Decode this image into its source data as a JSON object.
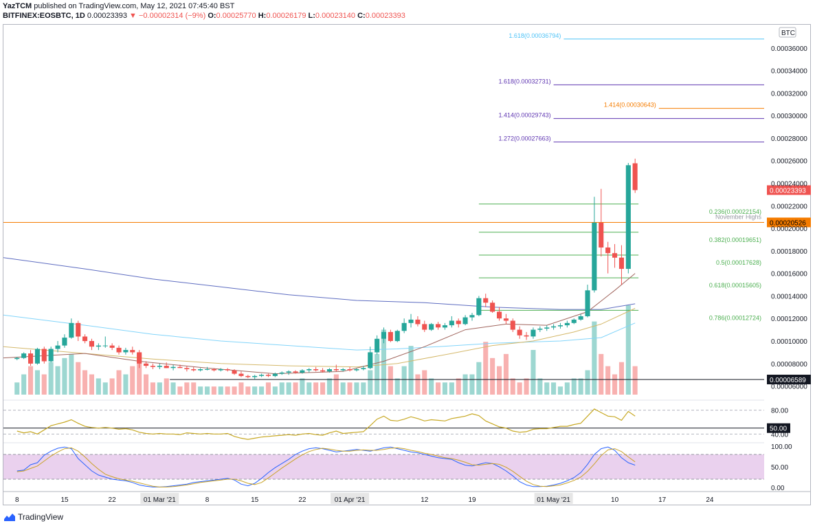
{
  "header": {
    "publisher": "YazTCM",
    "published_text": "published on TradingView.com, May 12, 2021 07:45:40 BST",
    "symbol": "BITFINEX:EOSBTC, 1D",
    "last": "0.00023393",
    "change": "−0.00002314 (−9%)",
    "o_label": "O:",
    "o_value": "0.00025770",
    "h_label": "H:",
    "h_value": "0.00026179",
    "l_label": "L:",
    "l_value": "0.00023140",
    "c_label": "C:",
    "c_value": "0.00023393"
  },
  "footer": {
    "brand": "TradingView"
  },
  "colors": {
    "up": "#26a69a",
    "down": "#ef5350",
    "fib": "#4caf50",
    "purple_fib": "#5e35b1",
    "orange": "#f57c00",
    "lightblue": "#4fc3f7",
    "rsi": "#c7a823",
    "stoch_k": "#2962ff",
    "stoch_d": "#c9a227"
  },
  "chart_data": {
    "type": "candlestick",
    "currency_label": "BTC",
    "y_ticks": [
      "0.00036000",
      "0.00034000",
      "0.00032000",
      "0.00030000",
      "0.00028000",
      "0.00026000",
      "0.00024000",
      "0.00022000",
      "0.00020000",
      "0.00018000",
      "0.00016000",
      "0.00014000",
      "0.00012000",
      "0.00010000",
      "0.00008000",
      "0.00006000"
    ],
    "y_range": [
      5e-05,
      0.00038
    ],
    "x_ticks": [
      "8",
      "15",
      "22",
      "01 Mar '21",
      "8",
      "15",
      "22",
      "01 Apr '21",
      "12",
      "19",
      "01 May '21",
      "10",
      "17",
      "24"
    ],
    "x_day_range": [
      -2,
      110
    ],
    "last_price_label": "0.00023393",
    "november_highs": {
      "label": "November Highs",
      "value_label": "0.00020526",
      "value": 0.00020526
    },
    "support_line": {
      "value_label": "0.00006589",
      "value": 6.589e-05
    },
    "fib_levels": [
      {
        "label": "0.236(0.00022154)",
        "value": 0.00022154,
        "color": "#4caf50"
      },
      {
        "label": "0.382(0.00019651)",
        "value": 0.00019651,
        "color": "#4caf50"
      },
      {
        "label": "0.5(0.00017628)",
        "value": 0.00017628,
        "color": "#4caf50"
      },
      {
        "label": "0.618(0.00015605)",
        "value": 0.00015605,
        "color": "#4caf50"
      },
      {
        "label": "0.786(0.00012724)",
        "value": 0.00012724,
        "color": "#4caf50"
      }
    ],
    "extension_levels": [
      {
        "label": "1.618(0.00036794)",
        "value": 0.00036794,
        "color": "#4fc3f7"
      },
      {
        "label": "1.618(0.00032731)",
        "value": 0.00032731,
        "color": "#5e35b1"
      },
      {
        "label": "1.414(0.00030643)",
        "value": 0.00030643,
        "color": "#f57c00"
      },
      {
        "label": "1.414(0.00029743)",
        "value": 0.00029743,
        "color": "#5e35b1"
      },
      {
        "label": "1.272(0.00027663)",
        "value": 0.00027663,
        "color": "#5e35b1"
      }
    ],
    "candles": [
      [
        0,
        8.4,
        8.6,
        8.3,
        8.5
      ],
      [
        1,
        8.5,
        9.0,
        8.4,
        8.9
      ],
      [
        2,
        8.9,
        9.2,
        7.8,
        8.0
      ],
      [
        3,
        8.0,
        9.4,
        7.9,
        9.3
      ],
      [
        4,
        9.3,
        9.5,
        8.0,
        8.2
      ],
      [
        5,
        8.2,
        9.5,
        8.1,
        9.3
      ],
      [
        6,
        9.3,
        10.0,
        9.0,
        9.6
      ],
      [
        7,
        9.6,
        10.6,
        9.4,
        10.3
      ],
      [
        8,
        10.3,
        12.0,
        10.2,
        11.6
      ],
      [
        9,
        11.6,
        11.8,
        10.0,
        10.4
      ],
      [
        10,
        10.4,
        10.6,
        9.8,
        10.0
      ],
      [
        11,
        10.0,
        10.2,
        9.2,
        9.5
      ],
      [
        12,
        9.5,
        9.8,
        9.2,
        9.6
      ],
      [
        13,
        9.6,
        10.4,
        9.4,
        9.6
      ],
      [
        14,
        9.6,
        9.8,
        9.2,
        9.4
      ],
      [
        15,
        9.4,
        9.6,
        8.8,
        9.0
      ],
      [
        16,
        9.0,
        9.4,
        8.8,
        9.2
      ],
      [
        17,
        9.2,
        9.5,
        8.8,
        9.0
      ],
      [
        18,
        9.0,
        9.2,
        7.6,
        8.0
      ],
      [
        19,
        8.0,
        8.2,
        7.6,
        7.8
      ],
      [
        20,
        7.8,
        8.0,
        7.5,
        7.7
      ],
      [
        21,
        7.7,
        8.0,
        7.5,
        7.8
      ],
      [
        22,
        7.8,
        8.1,
        7.6,
        7.6
      ],
      [
        23,
        7.6,
        7.9,
        7.4,
        7.7
      ],
      [
        24,
        7.7,
        7.9,
        7.6,
        7.6
      ],
      [
        25,
        7.6,
        7.8,
        7.3,
        7.5
      ],
      [
        26,
        7.5,
        7.7,
        7.3,
        7.4
      ],
      [
        27,
        7.4,
        7.6,
        7.3,
        7.5
      ],
      [
        28,
        7.5,
        7.7,
        7.4,
        7.5
      ],
      [
        29,
        7.5,
        7.6,
        7.3,
        7.4
      ],
      [
        30,
        7.4,
        7.6,
        7.3,
        7.5
      ],
      [
        31,
        7.5,
        7.6,
        7.3,
        7.4
      ],
      [
        32,
        7.4,
        7.5,
        7.0,
        7.1
      ],
      [
        33,
        7.1,
        7.3,
        6.8,
        6.9
      ],
      [
        34,
        6.9,
        7.0,
        6.7,
        6.8
      ],
      [
        35,
        6.8,
        7.0,
        6.6,
        6.9
      ],
      [
        36,
        6.9,
        7.1,
        6.8,
        7.0
      ],
      [
        37,
        7.0,
        7.1,
        6.8,
        6.9
      ],
      [
        38,
        6.9,
        7.2,
        6.8,
        7.1
      ],
      [
        39,
        7.1,
        7.3,
        7.0,
        7.2
      ],
      [
        40,
        7.2,
        7.4,
        7.0,
        7.3
      ],
      [
        41,
        7.3,
        7.4,
        7.1,
        7.2
      ],
      [
        42,
        7.2,
        7.5,
        7.1,
        7.4
      ],
      [
        43,
        7.4,
        7.6,
        7.2,
        7.5
      ],
      [
        44,
        7.5,
        7.7,
        7.3,
        7.4
      ],
      [
        45,
        7.4,
        7.6,
        7.2,
        7.3
      ],
      [
        46,
        7.3,
        7.6,
        7.2,
        7.5
      ],
      [
        47,
        7.5,
        7.9,
        7.3,
        7.4
      ],
      [
        48,
        7.4,
        7.6,
        7.3,
        7.5
      ],
      [
        49,
        7.5,
        7.7,
        7.3,
        7.4
      ],
      [
        50,
        7.4,
        7.6,
        7.3,
        7.5
      ],
      [
        51,
        7.5,
        7.8,
        7.4,
        7.6
      ],
      [
        52,
        7.6,
        9.5,
        7.5,
        9.0
      ],
      [
        53,
        9.0,
        10.5,
        8.8,
        10.2
      ],
      [
        54,
        10.2,
        11.2,
        9.8,
        10.8
      ],
      [
        55,
        10.8,
        11.0,
        9.9,
        10.0
      ],
      [
        56,
        10.0,
        11.0,
        9.9,
        10.9
      ],
      [
        57,
        10.9,
        12.0,
        10.7,
        11.6
      ],
      [
        58,
        11.6,
        12.4,
        11.2,
        11.9
      ],
      [
        59,
        11.9,
        12.2,
        11.3,
        11.5
      ],
      [
        60,
        11.5,
        11.8,
        10.8,
        11.0
      ],
      [
        61,
        11.0,
        11.6,
        10.9,
        11.5
      ],
      [
        62,
        11.5,
        11.7,
        11.0,
        11.2
      ],
      [
        63,
        11.2,
        11.6,
        11.0,
        11.4
      ],
      [
        64,
        11.4,
        12.2,
        11.2,
        11.8
      ],
      [
        65,
        11.8,
        12.0,
        11.2,
        11.5
      ],
      [
        66,
        11.5,
        12.3,
        11.4,
        12.1
      ],
      [
        67,
        12.1,
        12.5,
        11.8,
        12.3
      ],
      [
        68,
        12.3,
        14.0,
        12.2,
        13.8
      ],
      [
        69,
        13.8,
        14.2,
        13.0,
        13.4
      ],
      [
        70,
        13.4,
        13.6,
        12.5,
        12.6
      ],
      [
        71,
        12.6,
        13.0,
        11.8,
        12.0
      ],
      [
        72,
        12.0,
        12.4,
        11.5,
        11.8
      ],
      [
        73,
        11.8,
        12.0,
        10.8,
        11.0
      ],
      [
        74,
        11.0,
        11.3,
        10.2,
        10.5
      ],
      [
        75,
        10.5,
        10.8,
        10.1,
        10.4
      ],
      [
        76,
        10.4,
        11.2,
        10.2,
        11.0
      ],
      [
        77,
        11.0,
        11.3,
        10.8,
        11.1
      ],
      [
        78,
        11.1,
        11.4,
        10.9,
        11.2
      ],
      [
        79,
        11.2,
        11.5,
        11.0,
        11.3
      ],
      [
        80,
        11.3,
        11.6,
        11.1,
        11.4
      ],
      [
        81,
        11.4,
        11.8,
        11.2,
        11.6
      ],
      [
        82,
        11.6,
        12.0,
        11.5,
        11.9
      ],
      [
        83,
        11.9,
        12.4,
        11.8,
        12.2
      ],
      [
        84,
        12.2,
        15.0,
        12.1,
        14.5
      ],
      [
        85,
        14.5,
        22.8,
        14.3,
        20.5
      ],
      [
        86,
        20.5,
        23.5,
        17.5,
        18.3
      ],
      [
        87,
        18.3,
        18.8,
        16.0,
        17.8
      ],
      [
        88,
        17.8,
        18.6,
        16.5,
        17.4
      ],
      [
        89,
        17.4,
        18.5,
        15.0,
        16.4
      ],
      [
        90,
        16.4,
        25.8,
        16.0,
        25.6
      ],
      [
        91,
        25.77,
        26.18,
        23.14,
        23.39
      ]
    ],
    "ma_slow": [
      [
        -2,
        17.4
      ],
      [
        10,
        16.4
      ],
      [
        20,
        15.5
      ],
      [
        30,
        14.8
      ],
      [
        40,
        14.1
      ],
      [
        50,
        13.6
      ],
      [
        60,
        13.4
      ],
      [
        70,
        13.0
      ],
      [
        80,
        12.8
      ],
      [
        86,
        12.8
      ],
      [
        91,
        13.3
      ]
    ],
    "ma_blue": [
      [
        -2,
        12.3
      ],
      [
        10,
        11.4
      ],
      [
        20,
        10.6
      ],
      [
        30,
        10.0
      ],
      [
        40,
        9.6
      ],
      [
        50,
        9.2
      ],
      [
        56,
        9.3
      ],
      [
        62,
        9.5
      ],
      [
        70,
        9.8
      ],
      [
        80,
        10.0
      ],
      [
        86,
        10.3
      ],
      [
        91,
        11.6
      ]
    ],
    "ma_gold": [
      [
        -2,
        9.5
      ],
      [
        10,
        8.9
      ],
      [
        20,
        8.4
      ],
      [
        30,
        8.0
      ],
      [
        40,
        7.8
      ],
      [
        50,
        7.7
      ],
      [
        56,
        8.0
      ],
      [
        64,
        8.9
      ],
      [
        70,
        9.6
      ],
      [
        76,
        10.0
      ],
      [
        82,
        10.8
      ],
      [
        86,
        11.5
      ],
      [
        91,
        12.9
      ]
    ],
    "ma_brown": [
      [
        -2,
        8.5
      ],
      [
        10,
        8.9
      ],
      [
        18,
        8.2
      ],
      [
        28,
        7.6
      ],
      [
        38,
        7.1
      ],
      [
        48,
        7.3
      ],
      [
        54,
        8.2
      ],
      [
        60,
        9.5
      ],
      [
        66,
        11.0
      ],
      [
        72,
        11.5
      ],
      [
        78,
        11.4
      ],
      [
        84,
        12.6
      ],
      [
        88,
        14.5
      ],
      [
        91,
        16.0
      ]
    ],
    "volume": [
      3,
      5,
      7,
      6,
      5,
      8,
      7,
      9,
      10,
      8,
      6,
      5,
      4,
      3,
      4,
      6,
      5,
      7,
      10,
      5,
      3,
      3,
      4,
      3,
      2,
      3,
      3,
      2,
      2,
      2,
      2,
      2,
      2,
      3,
      2,
      2,
      2,
      3,
      2,
      3,
      3,
      3,
      4,
      3,
      3,
      3,
      4,
      5,
      3,
      3,
      3,
      3,
      6,
      10,
      16,
      7,
      4,
      7,
      12,
      5,
      6,
      4,
      3,
      3,
      3,
      4,
      5,
      5,
      8,
      13,
      9,
      7,
      10,
      4,
      3,
      4,
      11,
      4,
      3,
      3,
      2,
      3,
      4,
      4,
      6,
      18,
      10,
      7,
      5,
      8,
      22,
      7
    ],
    "volume_ticks": [],
    "rsi": {
      "levels": [
        "80.00",
        "50.00",
        "40.00"
      ],
      "values": [
        45,
        42,
        44,
        40,
        47,
        54,
        57,
        60,
        64,
        58,
        53,
        51,
        50,
        51,
        50,
        48,
        49,
        47,
        43,
        41,
        40,
        41,
        40,
        40,
        39,
        42,
        41,
        40,
        41,
        40,
        40,
        41,
        36,
        33,
        31,
        33,
        35,
        36,
        37,
        38,
        39,
        38,
        40,
        41,
        39,
        38,
        42,
        45,
        41,
        42,
        43,
        44,
        54,
        65,
        70,
        63,
        62,
        65,
        69,
        66,
        62,
        64,
        63,
        62,
        66,
        68,
        70,
        74,
        71,
        62,
        57,
        52,
        50,
        45,
        43,
        44,
        48,
        49,
        49,
        51,
        53,
        53,
        56,
        58,
        70,
        82,
        76,
        70,
        69,
        63,
        78,
        70
      ]
    },
    "stoch": {
      "levels": [
        "100.00",
        "50.00",
        "0.00"
      ],
      "k": [
        40,
        42,
        55,
        60,
        78,
        88,
        95,
        98,
        94,
        70,
        55,
        40,
        30,
        25,
        20,
        18,
        16,
        12,
        6,
        3,
        1,
        1,
        2,
        4,
        6,
        8,
        12,
        14,
        16,
        18,
        20,
        22,
        18,
        8,
        4,
        10,
        22,
        36,
        48,
        58,
        68,
        80,
        88,
        94,
        96,
        94,
        90,
        86,
        88,
        90,
        92,
        90,
        88,
        92,
        96,
        98,
        94,
        90,
        86,
        84,
        80,
        76,
        72,
        70,
        68,
        60,
        54,
        52,
        56,
        60,
        58,
        50,
        40,
        28,
        14,
        6,
        2,
        2,
        3,
        6,
        10,
        16,
        24,
        36,
        56,
        80,
        94,
        98,
        90,
        72,
        60,
        54
      ],
      "d": [
        38,
        40,
        46,
        52,
        64,
        76,
        86,
        94,
        96,
        88,
        74,
        58,
        44,
        32,
        26,
        21,
        18,
        15,
        11,
        7,
        3,
        1,
        1,
        2,
        4,
        6,
        9,
        12,
        14,
        16,
        18,
        20,
        20,
        16,
        10,
        7,
        12,
        23,
        35,
        47,
        58,
        69,
        79,
        87,
        92,
        95,
        93,
        90,
        88,
        88,
        90,
        91,
        90,
        90,
        92,
        95,
        96,
        94,
        90,
        87,
        83,
        80,
        76,
        72,
        70,
        66,
        61,
        55,
        54,
        56,
        58,
        56,
        49,
        39,
        27,
        15,
        7,
        3,
        2,
        4,
        6,
        11,
        17,
        25,
        39,
        57,
        77,
        91,
        94,
        87,
        74,
        62
      ]
    }
  }
}
